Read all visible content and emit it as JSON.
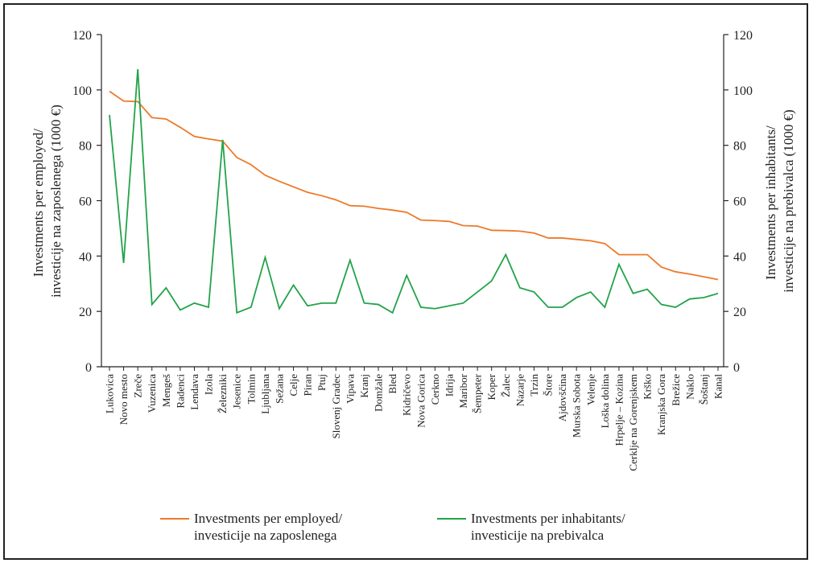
{
  "chart_data": {
    "type": "line",
    "categories": [
      "Lukovica",
      "Novo mesto",
      "Zreče",
      "Vuzenica",
      "Mengeš",
      "Radenci",
      "Lendava",
      "Izola",
      "Železniki",
      "Jesenice",
      "Tolmin",
      "Ljubljana",
      "Sežana",
      "Celje",
      "Piran",
      "Ptuj",
      "Slovenj Gradec",
      "Vipava",
      "Kranj",
      "Domžale",
      "Bled",
      "Kidričevo",
      "Nova Gorica",
      "Cerkno",
      "Idrija",
      "Maribor",
      "Šempeter",
      "Koper",
      "Žalec",
      "Nazarje",
      "Trzin",
      "Štore",
      "Ajdovščina",
      "Murska Sobota",
      "Velenje",
      "Loška dolina",
      "Hrpelje – Kozina",
      "Cerklje na Gorenjskem",
      "Krško",
      "Kranjska Gora",
      "Brežice",
      "Naklo",
      "Šoštanj",
      "Kanal"
    ],
    "series": [
      {
        "name_line1": "Investments per employed/",
        "name_line2": "investicije na zaposlenega",
        "color": "#ed7a2a",
        "axis": "left",
        "values": [
          99.5,
          96,
          95.8,
          90,
          89.5,
          86.5,
          83.2,
          82.3,
          81.5,
          75.6,
          73,
          69.2,
          67,
          65,
          63,
          61.8,
          60.3,
          58.2,
          58,
          57.2,
          56.6,
          55.8,
          53,
          52.8,
          52.5,
          51,
          50.8,
          49.3,
          49.2,
          49,
          48.3,
          46.5,
          46.5,
          46,
          45.5,
          44.5,
          40.5,
          40.5,
          40.5,
          36,
          34.3,
          33.5,
          32.5,
          31.5
        ]
      },
      {
        "name_line1": "Investments per inhabitants/",
        "name_line2": "investicije na prebivalca",
        "color": "#22a34a",
        "axis": "right",
        "values": [
          91,
          37.5,
          107.5,
          22.5,
          28.5,
          20.5,
          23,
          21.5,
          82,
          19.5,
          21.5,
          39.5,
          21,
          29.5,
          22,
          23,
          23,
          38.5,
          23,
          22.5,
          19.5,
          33,
          21.5,
          21,
          22,
          23,
          27,
          31,
          40.5,
          28.5,
          27,
          21.5,
          21.5,
          25,
          27,
          21.5,
          37,
          26.5,
          28,
          22.5,
          21.5,
          24.5,
          25,
          26.5
        ]
      }
    ],
    "y_left": {
      "label_line1": "Investments per employed/",
      "label_line2": "investicije na zaposlenega (1000 €)",
      "ylim": [
        0,
        120
      ],
      "ticks": [
        0,
        20,
        40,
        60,
        80,
        100,
        120
      ]
    },
    "y_right": {
      "label_line1": "Investments per inhabitants/",
      "label_line2": "investicije na prebivalca (1000 €)",
      "ylim": [
        0,
        120
      ],
      "ticks": [
        0,
        20,
        40,
        60,
        80,
        100,
        120
      ]
    },
    "grid": false,
    "legend_position": "bottom"
  }
}
